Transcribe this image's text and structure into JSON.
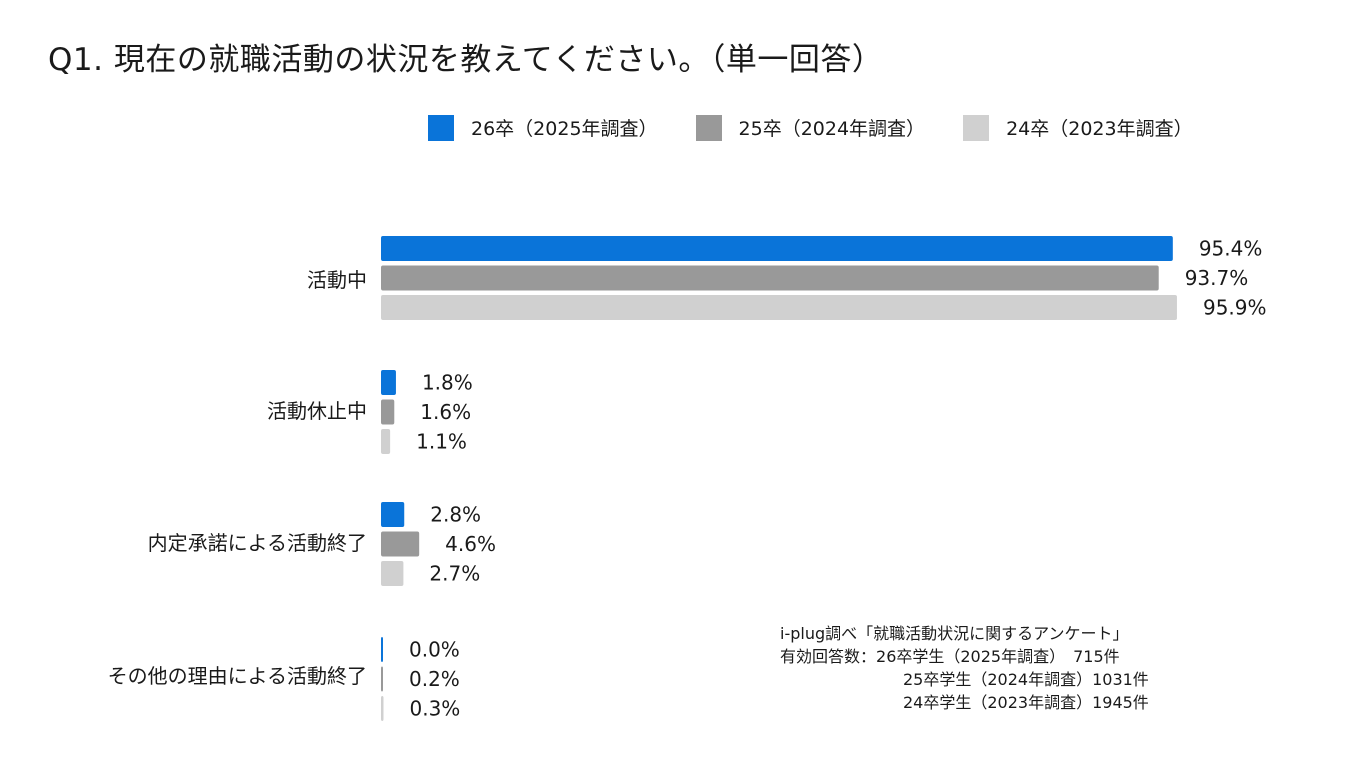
{
  "title": "Q1. 現在の就職活動の状況を教えてください。（単一回答）",
  "note": {
    "source": "i-plug調べ「就職活動状況に関するアンケート」",
    "respondents_label": "有効回答数：",
    "lines": [
      "26卒学生（2025年調査）　715件",
      "25卒学生（2024年調査）1031件",
      "24卒学生（2023年調査）1945件"
    ]
  },
  "chart_data": {
    "type": "bar",
    "orientation": "horizontal",
    "title": "Q1. 現在の就職活動の状況を教えてください。（単一回答）",
    "categories": [
      "活動中",
      "活動休止中",
      "内定承諾による活動終了",
      "その他の理由による活動終了"
    ],
    "series": [
      {
        "name": "26卒（2025年調査）",
        "color": "#0a74d9",
        "values": [
          95.4,
          1.8,
          2.8,
          0.0
        ],
        "labels": [
          "95.4%",
          "1.8%",
          "2.8%",
          "0.0%"
        ]
      },
      {
        "name": "25卒（2024年調査）",
        "color": "#999999",
        "values": [
          93.7,
          1.6,
          4.6,
          0.2
        ],
        "labels": [
          "93.7%",
          "1.6%",
          "4.6%",
          "0.2%"
        ]
      },
      {
        "name": "24卒（2023年調査）",
        "color": "#d0d0d0",
        "values": [
          95.9,
          1.1,
          2.7,
          0.3
        ],
        "labels": [
          "95.9%",
          "1.1%",
          "2.7%",
          "0.3%"
        ]
      }
    ],
    "unit": "%",
    "xlim": [
      0,
      100
    ],
    "legend_position": "top",
    "grid": false
  }
}
